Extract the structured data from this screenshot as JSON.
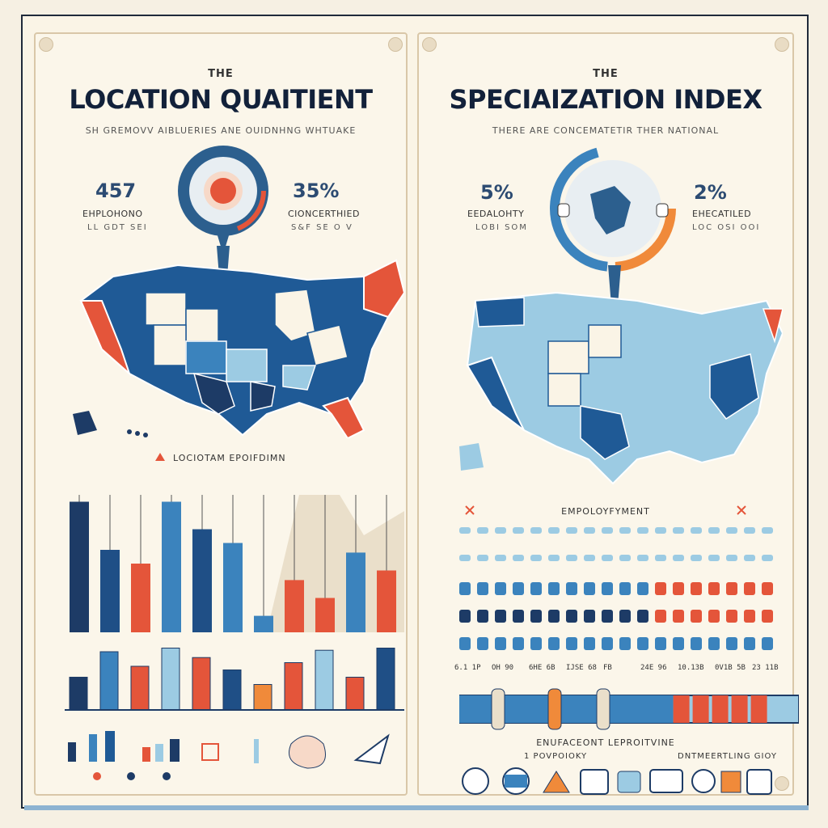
{
  "left": {
    "kicker": "THE",
    "title": "LOCATION QUAITIENT",
    "subtitle": "SH GREMOVV AIBLUERIES ANE OUIDNHNG WHTUAKE",
    "stat_left": {
      "value": "457",
      "label": "EHPLOHONO",
      "sub": "LL GDT SEI"
    },
    "stat_right": {
      "value": "35%",
      "label": "CIONCERTHIED",
      "sub": "S&F SE O V"
    },
    "map_legend": "LOCIOTAM EPOIFDIMN",
    "bars_top": [
      0.95,
      0.6,
      0.5,
      0.95,
      0.75,
      0.65,
      0.12,
      0.38,
      0.25,
      0.58,
      0.45
    ],
    "bars_top_colors": [
      "#1d3b66",
      "#1f4f86",
      "#e4553a",
      "#3b83bd",
      "#1f4f86",
      "#3b83bd",
      "#3b83bd",
      "#e4553a",
      "#e4553a",
      "#3b83bd",
      "#e4553a"
    ],
    "bars_mid": [
      0.45,
      0.8,
      0.6,
      0.85,
      0.72,
      0.55,
      0.35,
      0.65,
      0.82,
      0.45,
      0.85
    ],
    "bars_mid_colors": [
      "#1d3b66",
      "#3b83bd",
      "#e4553a",
      "#9ccbe3",
      "#e4553a",
      "#1f4f86",
      "#f08a3a",
      "#e4553a",
      "#9ccbe3",
      "#e4553a",
      "#1f4f86"
    ]
  },
  "right": {
    "kicker": "THE",
    "title": "SPECIAIZATION  INDEX",
    "subtitle": "THERE ARE CONCEMATETIR THER NATIONAL",
    "stat_left": {
      "value": "5%",
      "label": "EEDALOHTY",
      "sub": "LOBI SOM"
    },
    "stat_right": {
      "value": "2%",
      "label": "EHECATILED",
      "sub": "LOC OSI OOI"
    },
    "employment_label": "EMPOLOYFYMENT",
    "tick_labels": [
      "6.1 1P",
      "OH 90",
      "6HE 6B",
      "IJSE 68",
      "FB",
      "24E 96",
      "10.13B",
      "0V1B 5B",
      "23 11B"
    ],
    "progress_label": "ENUFACEONT LEPROITVINE",
    "progress_sub": "1 POVPOIOKY",
    "right_caption": "DNTMEERTLING GIOY",
    "progress_value": 0.63
  },
  "colors": {
    "navy": "#1d3b66",
    "blue": "#1f5a96",
    "mid_blue": "#3b83bd",
    "light_blue": "#9ccbe3",
    "red": "#e4553a",
    "orange": "#f08a3a",
    "cream": "#faf4e6"
  }
}
